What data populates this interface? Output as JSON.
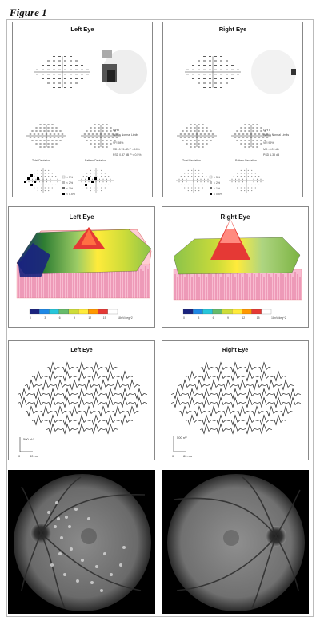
{
  "figure": {
    "title": "Figure 1"
  },
  "visual_fields": {
    "left": {
      "title": "Left Eye",
      "ght_label": "GHT",
      "ght_value": "Within Normal Limits",
      "vfi": "VFI   98%",
      "md": "MD   -0.76 dB  P < 10%",
      "psd": "PSD   0.37 dB  P < 0.5%",
      "total_label": "Total Deviation",
      "pattern_label": "Pattern Deviation",
      "legend": [
        "< 5%",
        "< 2%",
        "< 1%",
        "< 0.5%"
      ]
    },
    "right": {
      "title": "Right Eye",
      "ght_label": "GHT",
      "ght_value": "Within Normal Limits",
      "vfi": "VFI   99%",
      "md": "MD   -0.09 dB",
      "psd": "PSD   1.33 dB",
      "total_label": "Total Deviation",
      "pattern_label": "Pattern Deviation",
      "legend": [
        "< 5%",
        "< 2%",
        "< 1%",
        "< 0.5%"
      ]
    }
  },
  "mferg_3d": {
    "left": {
      "title": "Left Eye"
    },
    "right": {
      "title": "Right Eye"
    },
    "scale_ticks": [
      "0",
      "3",
      "6",
      "9",
      "12",
      "15",
      "18"
    ],
    "unit": "nV/deg^2",
    "colors": [
      "#1a237e",
      "#1e88e5",
      "#26c6da",
      "#66bb6a",
      "#cddc39",
      "#ffeb3b",
      "#ff9800",
      "#e53935",
      "#ffffff"
    ]
  },
  "mferg_traces": {
    "left": {
      "title": "Left Eye",
      "amp_label": "500 nV",
      "time_label": "80 ms",
      "zero_label": "0"
    },
    "right": {
      "title": "Right Eye",
      "amp_label": "500 nV",
      "time_label": "80 ms",
      "zero_label": "0"
    }
  }
}
